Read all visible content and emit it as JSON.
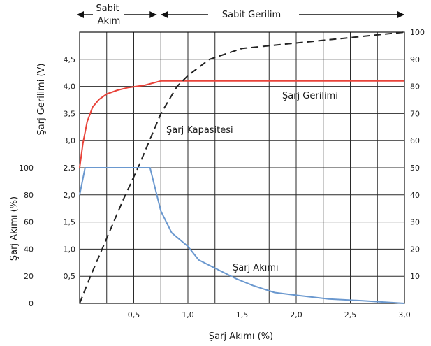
{
  "chart_data": {
    "type": "line",
    "title": "",
    "phases": [
      {
        "line1": "Sabit",
        "line2": "Akım",
        "x_start": 0.0,
        "x_end": 0.75
      },
      {
        "line1": "Sabit Gerilim",
        "line2": "",
        "x_start": 0.75,
        "x_end": 3.0
      }
    ],
    "xlabel": "Şarj Akımı (%)",
    "x_ticks": [
      "0,5",
      "1,0",
      "1,5",
      "2,0",
      "2,5",
      "3,0"
    ],
    "x_tick_values": [
      0.5,
      1.0,
      1.5,
      2.0,
      2.5,
      3.0
    ],
    "xlim": [
      0,
      3.0
    ],
    "ylim": [
      0,
      5.0
    ],
    "grid": true,
    "left_axis_upper": {
      "label": "Şarj Gerilimi (V)",
      "ticks": [
        "3,0",
        "3,5",
        "4,0",
        "4,5"
      ],
      "tick_values": [
        3.0,
        3.5,
        4.0,
        4.5
      ]
    },
    "left_axis_lower": {
      "label": "Şarj Akımı (%)",
      "ticks": [
        "0",
        "20",
        "40",
        "60",
        "80",
        "100"
      ],
      "tick_values": [
        0,
        20,
        40,
        60,
        80,
        100
      ],
      "inner_ticks": [
        "0,5",
        "1,0",
        "1,5",
        "2,0",
        "2,5"
      ],
      "inner_tick_values": [
        0.5,
        1.0,
        1.5,
        2.0,
        2.5
      ]
    },
    "right_axis": {
      "ticks": [
        "10",
        "20",
        "30",
        "40",
        "50",
        "60",
        "70",
        "80",
        "90",
        "100"
      ],
      "tick_values": [
        10,
        20,
        30,
        40,
        50,
        60,
        70,
        80,
        90,
        100
      ]
    },
    "series": [
      {
        "name": "Şarj Gerilimi",
        "color": "#e8433a",
        "style": "solid",
        "axis": "left",
        "x": [
          0.0,
          0.03,
          0.07,
          0.12,
          0.18,
          0.25,
          0.35,
          0.45,
          0.6,
          0.75,
          3.0
        ],
        "y": [
          2.5,
          2.95,
          3.35,
          3.62,
          3.76,
          3.86,
          3.93,
          3.98,
          4.02,
          4.1,
          4.1
        ]
      },
      {
        "name": "Şarj Kapasitesi",
        "color": "#222222",
        "style": "dashed",
        "axis": "right",
        "x": [
          0.0,
          0.1,
          0.25,
          0.4,
          0.55,
          0.75,
          0.9,
          1.0,
          1.1,
          1.2,
          1.35,
          1.5,
          1.75,
          2.0,
          2.5,
          3.0
        ],
        "y": [
          0,
          10,
          24,
          38,
          51,
          70,
          80,
          84,
          87,
          90,
          92,
          94,
          95,
          96,
          98,
          100
        ]
      },
      {
        "name": "Şarj Akımı",
        "color": "#6a98cf",
        "style": "solid",
        "axis": "left",
        "x": [
          0.0,
          0.05,
          0.65,
          0.75,
          0.85,
          1.0,
          1.1,
          1.25,
          1.45,
          1.6,
          1.8,
          2.0,
          2.3,
          2.6,
          3.0
        ],
        "y": [
          2.0,
          2.5,
          2.5,
          1.7,
          1.3,
          1.05,
          0.8,
          0.65,
          0.45,
          0.33,
          0.2,
          0.15,
          0.08,
          0.05,
          0.0
        ]
      }
    ],
    "annotations": [
      {
        "text": "Şarj Gerilimi",
        "series": 0
      },
      {
        "text": "Şarj Kapasitesi",
        "series": 1
      },
      {
        "text": "Şarj Akımı",
        "series": 2
      }
    ]
  }
}
